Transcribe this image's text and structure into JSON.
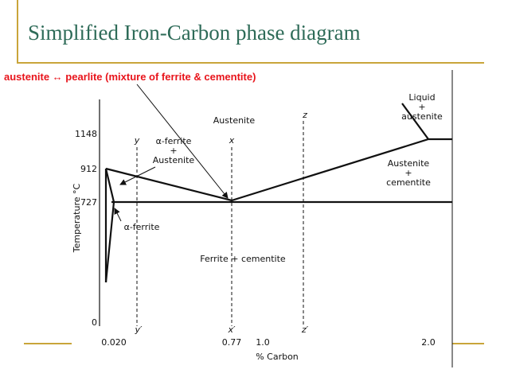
{
  "title": "Simplified Iron-Carbon phase diagram",
  "annotation": "austenite ↔ pearlite (mixture of  ferrite & cementite)",
  "diagram": {
    "y_axis_label": "Temperature °C",
    "x_axis_label": "% Carbon",
    "temperature_labels": [
      "1148",
      "912",
      "727",
      "0"
    ],
    "carbon_labels": [
      "0.020",
      "0.77",
      "1.0",
      "2.0"
    ],
    "line_labels": [
      "y",
      "x",
      "z"
    ],
    "line_foot_labels": [
      "y′",
      "x′",
      "z′"
    ],
    "regions": [
      {
        "lines": [
          "Liquid",
          "+",
          "austenite"
        ]
      },
      {
        "lines": [
          "Austenite"
        ]
      },
      {
        "lines": [
          "α-ferrite",
          "+",
          "Austenite"
        ]
      },
      {
        "lines": [
          "Austenite",
          "+",
          "cementite"
        ]
      },
      {
        "lines": [
          "α-ferrite"
        ]
      },
      {
        "lines": [
          "Ferrite + cementite"
        ]
      }
    ]
  }
}
